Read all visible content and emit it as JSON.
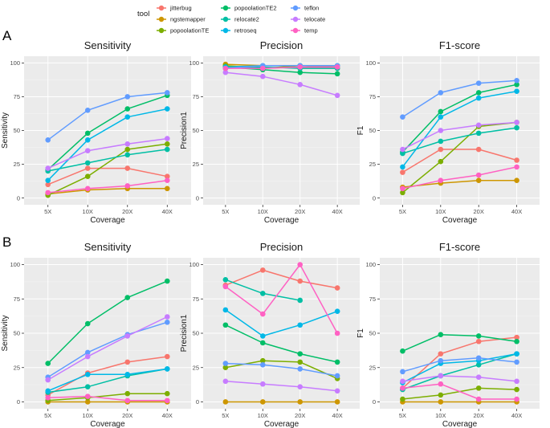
{
  "legend": {
    "title": "tool",
    "tools": [
      {
        "name": "jitterbug",
        "color": "#F8766D"
      },
      {
        "name": "ngstemapper",
        "color": "#CD9600"
      },
      {
        "name": "popoolationTE",
        "color": "#7CAE00"
      },
      {
        "name": "popoolationTE2",
        "color": "#00BE67"
      },
      {
        "name": "relocate2",
        "color": "#00BFA4"
      },
      {
        "name": "retroseq",
        "color": "#00B8E7"
      },
      {
        "name": "teflon",
        "color": "#619CFF"
      },
      {
        "name": "telocate",
        "color": "#C77CFF"
      },
      {
        "name": "temp",
        "color": "#FF61C3"
      }
    ]
  },
  "panels": [
    {
      "label": "A"
    },
    {
      "label": "B"
    }
  ],
  "chart_data": [
    {
      "type": "line",
      "panel": "A",
      "title": "Sensitivity",
      "xlabel": "Coverage",
      "ylabel": "Sensitivity",
      "categories": [
        "5X",
        "10X",
        "20X",
        "40X"
      ],
      "ylim": [
        0,
        100
      ],
      "yticks": [
        0,
        25,
        50,
        75,
        100
      ],
      "series": [
        {
          "name": "jitterbug",
          "values": [
            10,
            22,
            22,
            16
          ]
        },
        {
          "name": "ngstemapper",
          "values": [
            3,
            6,
            7,
            7
          ]
        },
        {
          "name": "popoolationTE",
          "values": [
            2,
            16,
            36,
            40
          ]
        },
        {
          "name": "popoolationTE2",
          "values": [
            21,
            48,
            66,
            76
          ]
        },
        {
          "name": "relocate2",
          "values": [
            20,
            26,
            32,
            36
          ]
        },
        {
          "name": "retroseq",
          "values": [
            13,
            43,
            60,
            66
          ]
        },
        {
          "name": "teflon",
          "values": [
            43,
            65,
            75,
            78
          ]
        },
        {
          "name": "telocate",
          "values": [
            22,
            35,
            40,
            44
          ]
        },
        {
          "name": "temp",
          "values": [
            4,
            7,
            9,
            13
          ]
        }
      ]
    },
    {
      "type": "line",
      "panel": "A",
      "title": "Precision",
      "xlabel": "Coverage",
      "ylabel": "Precision1",
      "categories": [
        "5X",
        "10X",
        "20X",
        "40X"
      ],
      "ylim": [
        0,
        100
      ],
      "yticks": [
        0,
        25,
        50,
        75,
        100
      ],
      "series": [
        {
          "name": "jitterbug",
          "values": [
            97,
            96,
            97,
            96
          ]
        },
        {
          "name": "ngstemapper",
          "values": [
            99,
            98,
            98,
            98
          ]
        },
        {
          "name": "popoolationTE",
          "values": [
            98,
            96,
            98,
            97
          ]
        },
        {
          "name": "popoolationTE2",
          "values": [
            97,
            95,
            93,
            92
          ]
        },
        {
          "name": "relocate2",
          "values": [
            96,
            97,
            96,
            96
          ]
        },
        {
          "name": "retroseq",
          "values": [
            97,
            98,
            98,
            98
          ]
        },
        {
          "name": "teflon",
          "values": [
            96,
            98,
            98,
            98
          ]
        },
        {
          "name": "telocate",
          "values": [
            93,
            90,
            84,
            76
          ]
        },
        {
          "name": "temp",
          "values": [
            96,
            96,
            97,
            97
          ]
        }
      ]
    },
    {
      "type": "line",
      "panel": "A",
      "title": "F1-score",
      "xlabel": "Coverage",
      "ylabel": "F1",
      "categories": [
        "5X",
        "10X",
        "20X",
        "40X"
      ],
      "ylim": [
        0,
        100
      ],
      "yticks": [
        0,
        25,
        50,
        75,
        100
      ],
      "series": [
        {
          "name": "jitterbug",
          "values": [
            19,
            36,
            36,
            28
          ]
        },
        {
          "name": "ngstemapper",
          "values": [
            8,
            11,
            13,
            13
          ]
        },
        {
          "name": "popoolationTE",
          "values": [
            4,
            27,
            53,
            56
          ]
        },
        {
          "name": "popoolationTE2",
          "values": [
            34,
            64,
            78,
            84
          ]
        },
        {
          "name": "relocate2",
          "values": [
            33,
            42,
            48,
            52
          ]
        },
        {
          "name": "retroseq",
          "values": [
            23,
            60,
            74,
            79
          ]
        },
        {
          "name": "teflon",
          "values": [
            60,
            78,
            85,
            87
          ]
        },
        {
          "name": "telocate",
          "values": [
            36,
            50,
            54,
            56
          ]
        },
        {
          "name": "temp",
          "values": [
            7,
            13,
            17,
            23
          ]
        }
      ]
    },
    {
      "type": "line",
      "panel": "B",
      "title": "Sensitivity",
      "xlabel": "Coverage",
      "ylabel": "Sensitivity",
      "categories": [
        "5X",
        "10X",
        "20X",
        "40X"
      ],
      "ylim": [
        0,
        100
      ],
      "yticks": [
        0,
        25,
        50,
        75,
        100
      ],
      "series": [
        {
          "name": "jitterbug",
          "values": [
            5,
            21,
            29,
            33
          ]
        },
        {
          "name": "ngstemapper",
          "values": [
            0,
            0,
            0,
            0
          ]
        },
        {
          "name": "popoolationTE",
          "values": [
            1,
            3,
            6,
            6
          ]
        },
        {
          "name": "popoolationTE2",
          "values": [
            28,
            57,
            76,
            88
          ]
        },
        {
          "name": "relocate2",
          "values": [
            7,
            11,
            19,
            24
          ]
        },
        {
          "name": "retroseq",
          "values": [
            8,
            20,
            20,
            24
          ]
        },
        {
          "name": "teflon",
          "values": [
            18,
            36,
            49,
            58
          ]
        },
        {
          "name": "telocate",
          "values": [
            16,
            33,
            48,
            62
          ]
        },
        {
          "name": "temp",
          "values": [
            3,
            4,
            1,
            1
          ]
        }
      ]
    },
    {
      "type": "line",
      "panel": "B",
      "title": "Precision",
      "xlabel": "Coverage",
      "ylabel": "Precision1",
      "categories": [
        "5X",
        "10X",
        "20X",
        "40X"
      ],
      "ylim": [
        0,
        100
      ],
      "yticks": [
        0,
        25,
        50,
        75,
        100
      ],
      "series": [
        {
          "name": "jitterbug",
          "values": [
            85,
            96,
            88,
            83
          ]
        },
        {
          "name": "ngstemapper",
          "values": [
            0,
            0,
            0,
            0
          ]
        },
        {
          "name": "popoolationTE",
          "values": [
            25,
            30,
            29,
            17
          ]
        },
        {
          "name": "popoolationTE2",
          "values": [
            56,
            43,
            35,
            29
          ]
        },
        {
          "name": "relocate2",
          "values": [
            89,
            79,
            74,
            null
          ]
        },
        {
          "name": "retroseq",
          "values": [
            67,
            48,
            56,
            66
          ]
        },
        {
          "name": "teflon",
          "values": [
            28,
            27,
            24,
            19
          ]
        },
        {
          "name": "telocate",
          "values": [
            15,
            13,
            11,
            8
          ]
        },
        {
          "name": "temp",
          "values": [
            84,
            64,
            100,
            50
          ]
        }
      ]
    },
    {
      "type": "line",
      "panel": "B",
      "title": "F1-score",
      "xlabel": "Coverage",
      "ylabel": "F1",
      "categories": [
        "5X",
        "10X",
        "20X",
        "40X"
      ],
      "ylim": [
        0,
        100
      ],
      "yticks": [
        0,
        25,
        50,
        75,
        100
      ],
      "series": [
        {
          "name": "jitterbug",
          "values": [
            10,
            35,
            44,
            47
          ]
        },
        {
          "name": "ngstemapper",
          "values": [
            0,
            0,
            0,
            0
          ]
        },
        {
          "name": "popoolationTE",
          "values": [
            2,
            5,
            10,
            9
          ]
        },
        {
          "name": "popoolationTE2",
          "values": [
            37,
            49,
            48,
            44
          ]
        },
        {
          "name": "relocate2",
          "values": [
            9,
            19,
            27,
            35
          ]
        },
        {
          "name": "retroseq",
          "values": [
            14,
            28,
            30,
            35
          ]
        },
        {
          "name": "teflon",
          "values": [
            22,
            30,
            32,
            29
          ]
        },
        {
          "name": "telocate",
          "values": [
            15,
            19,
            18,
            15
          ]
        },
        {
          "name": "temp",
          "values": [
            10,
            13,
            2,
            2
          ]
        }
      ]
    }
  ]
}
